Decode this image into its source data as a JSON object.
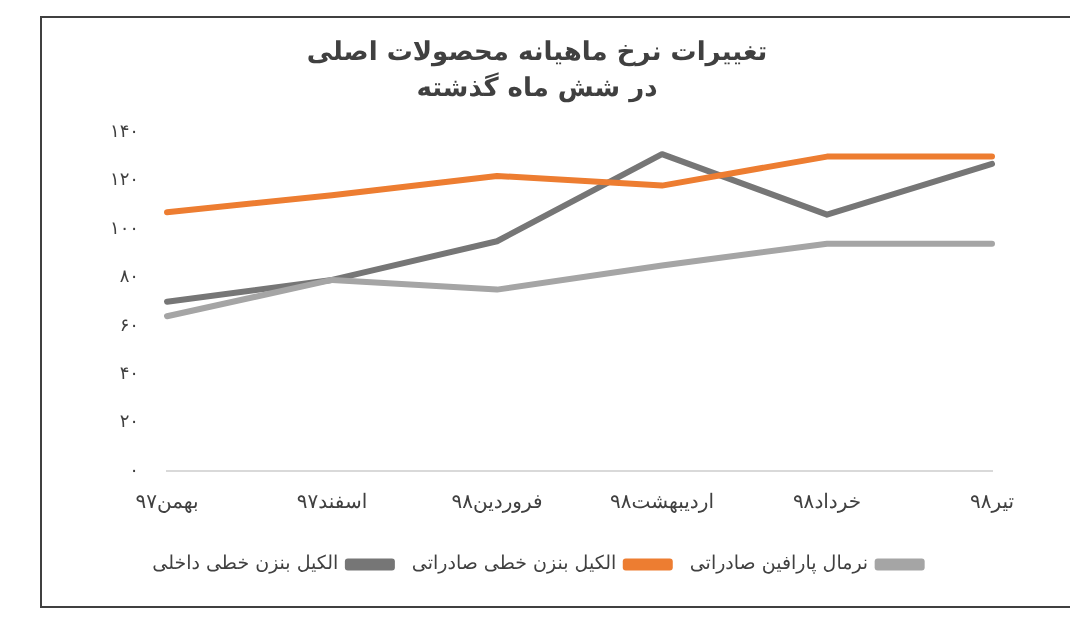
{
  "chart_data": {
    "type": "line",
    "title": "تغییرات نرخ ماهیانه محصولات اصلی",
    "subtitle": "در شش ماه گذشته",
    "categories": [
      "بهمن۹۷",
      "اسفند۹۷",
      "فروردین۹۸",
      "اردیبهشت۹۸",
      "خرداد۹۸",
      "تیر۹۸"
    ],
    "series": [
      {
        "name": "نرمال پارافین صادراتی",
        "color": "#a5a5a5",
        "values": [
          64,
          79,
          75,
          85,
          94,
          94
        ]
      },
      {
        "name": "الکیل بنزن خطی صادراتی",
        "color": "#ed7d31",
        "values": [
          107,
          114,
          122,
          118,
          130,
          130
        ]
      },
      {
        "name": "الکیل بنزن خطی داخلی",
        "color": "#767676",
        "values": [
          70,
          79,
          95,
          131,
          106,
          127
        ]
      }
    ],
    "ylim": [
      0,
      140
    ],
    "yticks": [
      {
        "value": 0,
        "label": "۰"
      },
      {
        "value": 20,
        "label": "۲۰"
      },
      {
        "value": 40,
        "label": "۴۰"
      },
      {
        "value": 60,
        "label": "۶۰"
      },
      {
        "value": 80,
        "label": "۸۰"
      },
      {
        "value": 100,
        "label": "۱۰۰"
      },
      {
        "value": 120,
        "label": "۱۲۰"
      },
      {
        "value": 140,
        "label": "۱۴۰"
      }
    ],
    "grid": false,
    "legend": "bottom",
    "marker": "none",
    "line_style": "solid"
  }
}
